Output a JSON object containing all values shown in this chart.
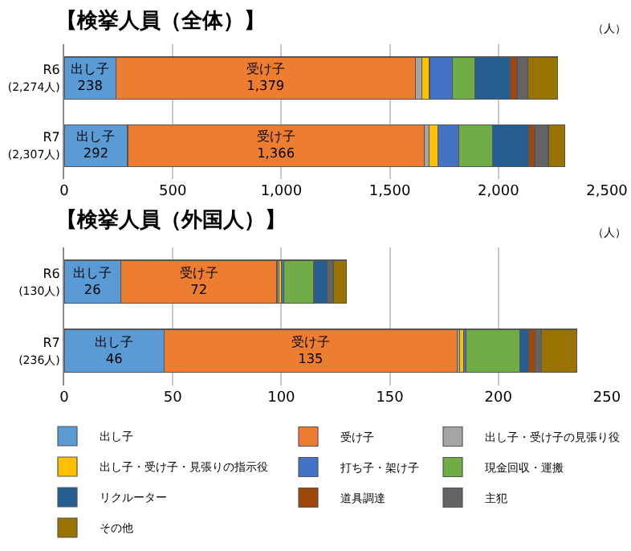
{
  "chart_data": [
    {
      "type": "bar",
      "orientation": "horizontal",
      "stacked": true,
      "title": "【検挙人員（全体）】",
      "xlabel": "（人）",
      "legend": "bottom",
      "categories": [
        "R6\n(2,274人)",
        "R7\n(2,307人)"
      ],
      "xlim": [
        0,
        2500
      ],
      "xticks": [
        0,
        500,
        {
          "value": 1000,
          "label": "1,000"
        },
        {
          "value": 1500,
          "label": "1,500"
        },
        {
          "value": 2000,
          "label": "2,000"
        },
        {
          "value": 2500,
          "label": "2,500"
        }
      ],
      "grid": "x",
      "series": [
        {
          "name": "出し子",
          "color": "#5b9bd5",
          "values": [
            238,
            292
          ],
          "value_labels": [
            "出し子\n238",
            "出し子\n292"
          ]
        },
        {
          "name": "受け子",
          "color": "#ed7d31",
          "values": [
            1379,
            1366
          ],
          "value_labels": [
            "受け子\n1,379",
            "受け子\n1,366"
          ]
        },
        {
          "name": "出し子・受け子の見張り役",
          "color": "#a5a5a5",
          "values": [
            32,
            24
          ]
        },
        {
          "name": "出し子・受け子・見張りの指示役",
          "color": "#ffc000",
          "values": [
            34,
            39
          ]
        },
        {
          "name": "打ち子・架け子",
          "color": "#4472c4",
          "values": [
            104,
            97
          ]
        },
        {
          "name": "現金回収・運搬",
          "color": "#70ad47",
          "values": [
            104,
            155
          ]
        },
        {
          "name": "リクルーター",
          "color": "#255e91",
          "values": [
            163,
            167
          ]
        },
        {
          "name": "道具調達",
          "color": "#9e480e",
          "values": [
            32,
            27
          ]
        },
        {
          "name": "主犯",
          "color": "#636363",
          "values": [
            49,
            63
          ]
        },
        {
          "name": "その他",
          "color": "#997300",
          "values": [
            139,
            77
          ]
        }
      ]
    },
    {
      "type": "bar",
      "orientation": "horizontal",
      "stacked": true,
      "title": "【検挙人員（外国人）】",
      "xlabel": "（人）",
      "categories": [
        "R6\n(130人)",
        "R7\n(236人)"
      ],
      "xlim": [
        0,
        250
      ],
      "xticks": [
        0,
        50,
        100,
        150,
        200,
        250
      ],
      "grid": "x",
      "series": [
        {
          "color": "#5b9bd5",
          "values": [
            26,
            46
          ],
          "value_labels": [
            "出し子\n26",
            "出し子\n46"
          ]
        },
        {
          "color": "#ed7d31",
          "values": [
            72,
            135
          ],
          "value_labels": [
            "受け子\n72",
            "受け子\n135"
          ]
        },
        {
          "color": "#a5a5a5",
          "values": [
            1,
            1
          ]
        },
        {
          "color": "#ffc000",
          "values": [
            1,
            2
          ]
        },
        {
          "color": "#4472c4",
          "values": [
            1,
            1
          ]
        },
        {
          "color": "#70ad47",
          "values": [
            14,
            25
          ]
        },
        {
          "color": "#255e91",
          "values": [
            6,
            4
          ]
        },
        {
          "color": "#9e480e",
          "values": [
            0,
            3
          ]
        },
        {
          "color": "#636363",
          "values": [
            3,
            3
          ]
        },
        {
          "color": "#997300",
          "values": [
            6,
            16
          ]
        }
      ]
    }
  ]
}
